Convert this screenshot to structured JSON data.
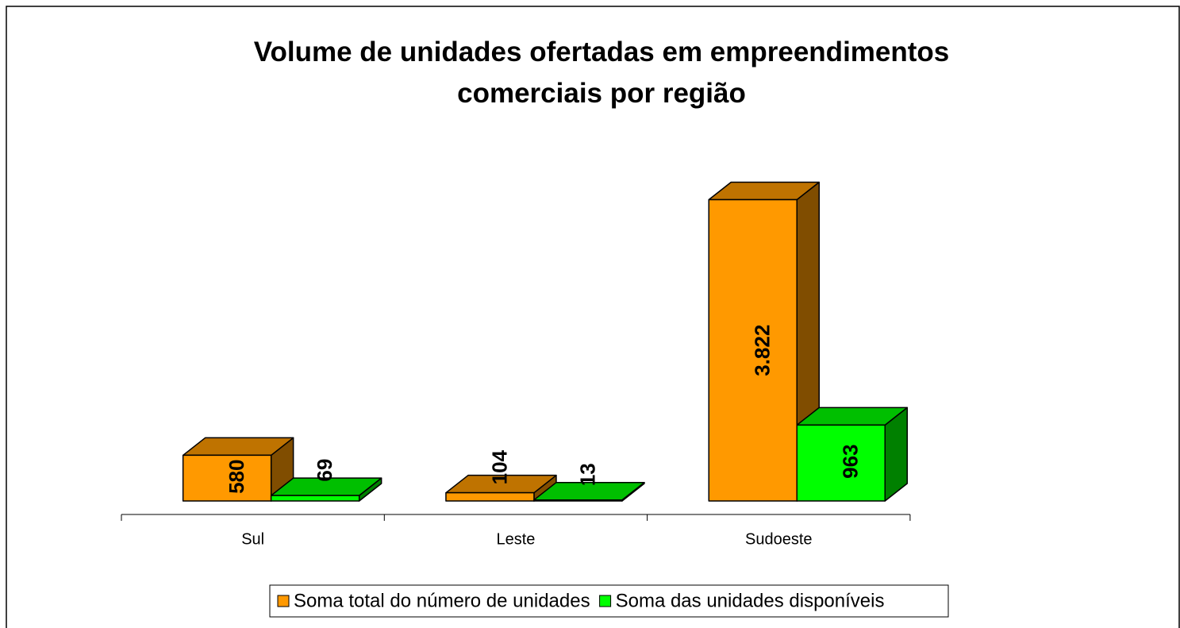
{
  "chart_data": {
    "type": "bar3d",
    "title": "Volume de unidades ofertadas em empreendimentos comerciais por região",
    "categories": [
      "Sul",
      "Leste",
      "Sudoeste"
    ],
    "series": [
      {
        "name": "Soma total do número de unidades",
        "color": "#ff9900",
        "values": [
          580,
          104,
          3822
        ],
        "value_labels": [
          "580",
          "104",
          "3.822"
        ]
      },
      {
        "name": "Soma das unidades disponíveis",
        "color": "#00ff00",
        "values": [
          69,
          13,
          963
        ]
      }
    ],
    "legend": "bottom"
  }
}
